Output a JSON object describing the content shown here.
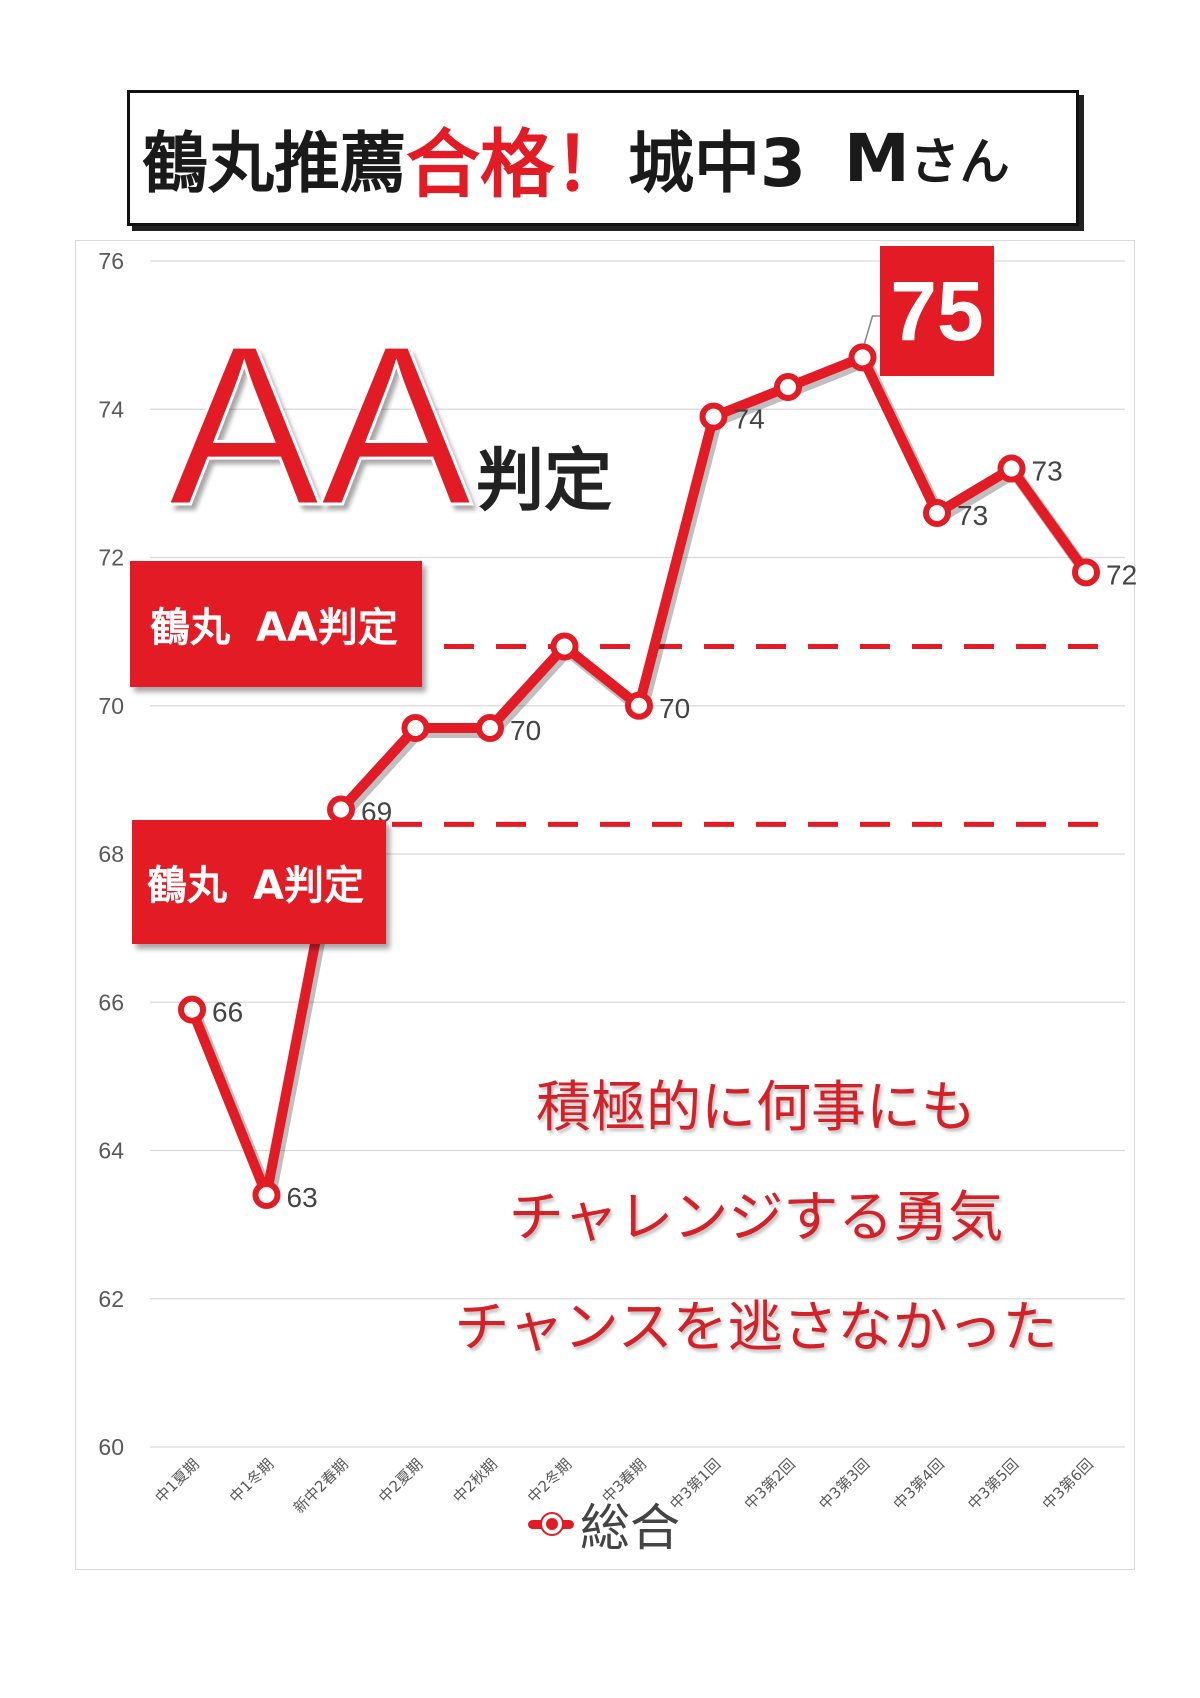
{
  "title": {
    "part1": "鶴丸推薦",
    "part2": "合格！",
    "part3": "城中3",
    "part4": "M",
    "part5": "さん"
  },
  "annotations": {
    "aa_big": "AA",
    "aa_big_suffix": "判定",
    "aa_line_school": "鶴丸",
    "aa_line_grade": "AA判定",
    "a_line_school": "鶴丸",
    "a_line_grade": "A判定",
    "peak": "75",
    "comment_lines": [
      "積極的に何事にも",
      "チャレンジする勇気",
      "チャンスを逃さなかった"
    ]
  },
  "colors": {
    "line": "#e21b24",
    "accent": "#e21b24",
    "comment": "#d42127"
  },
  "chart_data": {
    "type": "line",
    "categories": [
      "中1夏期",
      "中1冬期",
      "新中2春期",
      "中2夏期",
      "中2秋期",
      "中2冬期",
      "中3春期",
      "中3第1回",
      "中3第2回",
      "中3第3回",
      "中3第4回",
      "中3第5回",
      "中3第6回"
    ],
    "series": [
      {
        "name": "総合",
        "values": [
          65.9,
          63.4,
          68.6,
          69.7,
          69.7,
          70.8,
          70.0,
          73.9,
          74.3,
          74.7,
          72.6,
          73.2,
          71.8
        ],
        "labels": [
          "66",
          "63",
          "69",
          "",
          "70",
          "",
          "70",
          "74",
          "",
          "",
          "73",
          "73",
          "72"
        ]
      }
    ],
    "thresholds": [
      {
        "name": "鶴丸 AA判定",
        "value": 70.8
      },
      {
        "name": "鶴丸 A判定",
        "value": 68.4
      }
    ],
    "ylim": [
      60,
      76
    ],
    "yticks": [
      60,
      62,
      64,
      66,
      68,
      70,
      72,
      74,
      76
    ],
    "grid": true,
    "legend": "bottom",
    "title": "",
    "xlabel": "",
    "ylabel": ""
  }
}
